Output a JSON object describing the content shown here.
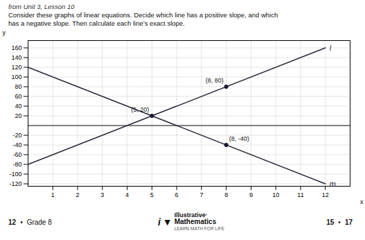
{
  "chart_data": {
    "type": "line",
    "title": "from Unit 3, Lesson 10",
    "text": [
      "Consider these graphs of linear equations. Decide which line has a positive slope, and which",
      "has a negative slope. Then calculate each line’s exact slope."
    ],
    "xlabel": "x",
    "ylabel": "y",
    "x": [
      0,
      12
    ],
    "series": [
      {
        "name": "l",
        "color": "#2a2a3a",
        "values": [
          -80,
          160
        ]
      },
      {
        "name": "m",
        "color": "#2a2a3a",
        "values": [
          120,
          -120
        ]
      }
    ],
    "points": [
      {
        "x": 8,
        "y": 80,
        "label": "(8, 80)"
      },
      {
        "x": 5,
        "y": 20,
        "label": "(5, 20)"
      },
      {
        "x": 8,
        "y": -40,
        "label": "(8, -40)"
      }
    ],
    "point_color": "#1a1a2e",
    "xlim": [
      0,
      13
    ],
    "ylim": [
      -125,
      175
    ],
    "xticks": [
      1,
      2,
      3,
      4,
      5,
      6,
      7,
      8,
      9,
      10,
      11,
      12
    ],
    "yticks": [
      -120,
      -100,
      -80,
      -60,
      -40,
      -20,
      20,
      40,
      60,
      80,
      100,
      120,
      140,
      160
    ],
    "grid": true,
    "footer": {
      "left": [
        "12",
        "•",
        "Grade 8"
      ],
      "logo": [
        "i",
        "▼",
        "Illustrative·",
        "Mathematics",
        "LEARN MATH FOR LIFE"
      ],
      "right": [
        "15",
        "•",
        "17"
      ]
    }
  }
}
